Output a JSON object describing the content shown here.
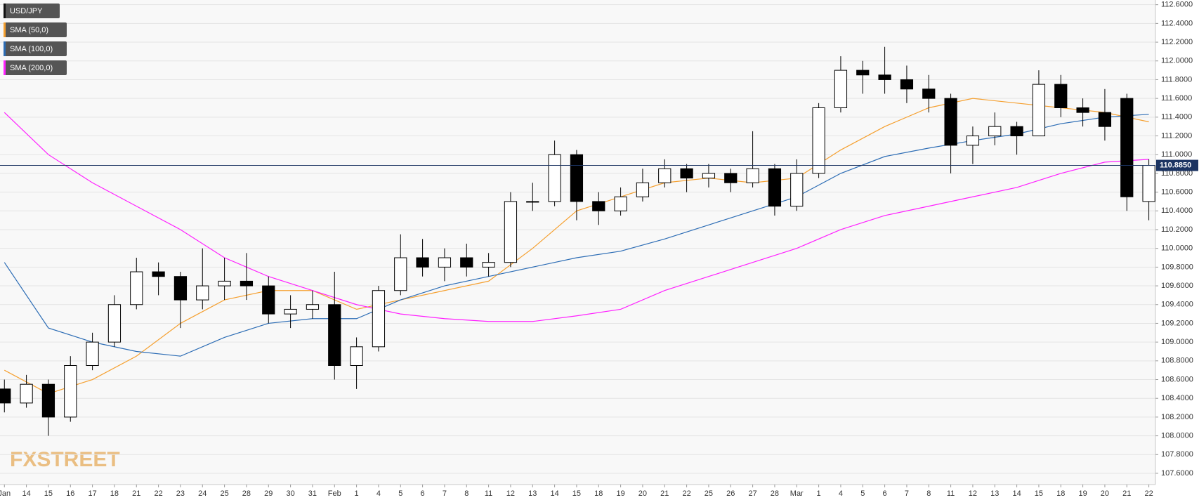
{
  "chart_data": {
    "type": "candlestick",
    "watermark": "FXSTREET",
    "xlim": [
      -0.2,
      52.3
    ],
    "ylim": [
      107.48,
      112.65
    ],
    "grid": true,
    "xticks": [
      {
        "value": 0,
        "label": "Jan"
      },
      {
        "value": 1,
        "label": "14"
      },
      {
        "value": 2,
        "label": "15"
      },
      {
        "value": 3,
        "label": "16"
      },
      {
        "value": 4,
        "label": "17"
      },
      {
        "value": 5,
        "label": "18"
      },
      {
        "value": 6,
        "label": "21"
      },
      {
        "value": 7,
        "label": "22"
      },
      {
        "value": 8,
        "label": "23"
      },
      {
        "value": 9,
        "label": "24"
      },
      {
        "value": 10,
        "label": "25"
      },
      {
        "value": 11,
        "label": "28"
      },
      {
        "value": 12,
        "label": "29"
      },
      {
        "value": 13,
        "label": "30"
      },
      {
        "value": 14,
        "label": "31"
      },
      {
        "value": 15,
        "label": "Feb"
      },
      {
        "value": 16,
        "label": "1"
      },
      {
        "value": 17,
        "label": "4"
      },
      {
        "value": 18,
        "label": "5"
      },
      {
        "value": 19,
        "label": "6"
      },
      {
        "value": 20,
        "label": "7"
      },
      {
        "value": 21,
        "label": "8"
      },
      {
        "value": 22,
        "label": "11"
      },
      {
        "value": 23,
        "label": "12"
      },
      {
        "value": 24,
        "label": "13"
      },
      {
        "value": 25,
        "label": "14"
      },
      {
        "value": 26,
        "label": "15"
      },
      {
        "value": 27,
        "label": "18"
      },
      {
        "value": 28,
        "label": "19"
      },
      {
        "value": 29,
        "label": "20"
      },
      {
        "value": 30,
        "label": "21"
      },
      {
        "value": 31,
        "label": "22"
      },
      {
        "value": 32,
        "label": "25"
      },
      {
        "value": 33,
        "label": "26"
      },
      {
        "value": 34,
        "label": "27"
      },
      {
        "value": 35,
        "label": "28"
      },
      {
        "value": 36,
        "label": "Mar"
      },
      {
        "value": 37,
        "label": "1"
      },
      {
        "value": 38,
        "label": "4"
      },
      {
        "value": 39,
        "label": "5"
      },
      {
        "value": 40,
        "label": "6"
      },
      {
        "value": 41,
        "label": "7"
      },
      {
        "value": 42,
        "label": "8"
      },
      {
        "value": 43,
        "label": "11"
      },
      {
        "value": 44,
        "label": "12"
      },
      {
        "value": 45,
        "label": "13"
      },
      {
        "value": 46,
        "label": "14"
      },
      {
        "value": 47,
        "label": "15"
      },
      {
        "value": 48,
        "label": "18"
      },
      {
        "value": 49,
        "label": "19"
      },
      {
        "value": 50,
        "label": "20"
      },
      {
        "value": 51,
        "label": "21"
      },
      {
        "value": 52,
        "label": "22"
      }
    ],
    "yticks": [
      {
        "value": 107.6,
        "label": "107.6000"
      },
      {
        "value": 107.8,
        "label": "107.8000"
      },
      {
        "value": 108.0,
        "label": "108.0000"
      },
      {
        "value": 108.2,
        "label": "108.2000"
      },
      {
        "value": 108.4,
        "label": "108.4000"
      },
      {
        "value": 108.6,
        "label": "108.6000"
      },
      {
        "value": 108.8,
        "label": "108.8000"
      },
      {
        "value": 109.0,
        "label": "109.0000"
      },
      {
        "value": 109.2,
        "label": "109.2000"
      },
      {
        "value": 109.4,
        "label": "109.4000"
      },
      {
        "value": 109.6,
        "label": "109.6000"
      },
      {
        "value": 109.8,
        "label": "109.8000"
      },
      {
        "value": 110.0,
        "label": "110.0000"
      },
      {
        "value": 110.2,
        "label": "110.2000"
      },
      {
        "value": 110.4,
        "label": "110.4000"
      },
      {
        "value": 110.6,
        "label": "110.6000"
      },
      {
        "value": 110.8,
        "label": "110.8000"
      },
      {
        "value": 111.0,
        "label": "111.0000"
      },
      {
        "value": 111.2,
        "label": "111.2000"
      },
      {
        "value": 111.4,
        "label": "111.4000"
      },
      {
        "value": 111.6,
        "label": "111.6000"
      },
      {
        "value": 111.8,
        "label": "111.8000"
      },
      {
        "value": 112.0,
        "label": "112.0000"
      },
      {
        "value": 112.2,
        "label": "112.2000"
      },
      {
        "value": 112.4,
        "label": "112.4000"
      },
      {
        "value": 112.6,
        "label": "112.6000"
      }
    ],
    "last_price": {
      "value": 110.885,
      "label": "110.8850",
      "color": "#1c3462"
    },
    "series": [
      {
        "name": "USD/JPY",
        "color": "#000000",
        "up_color": "#ffffff",
        "x": [
          0,
          1,
          2,
          3,
          4,
          5,
          6,
          7,
          8,
          9,
          10,
          11,
          12,
          13,
          14,
          15,
          16,
          17,
          18,
          19,
          20,
          21,
          22,
          23,
          24,
          25,
          26,
          27,
          28,
          29,
          30,
          31,
          32,
          33,
          34,
          35,
          36,
          37,
          38,
          39,
          40,
          41,
          42,
          43,
          44,
          45,
          46,
          47,
          48,
          49,
          50,
          51,
          52
        ],
        "open": [
          108.5,
          108.35,
          108.55,
          108.2,
          108.75,
          109.0,
          109.4,
          109.75,
          109.7,
          109.45,
          109.6,
          109.65,
          109.6,
          109.3,
          109.35,
          109.4,
          108.75,
          108.95,
          109.55,
          109.9,
          109.8,
          109.9,
          109.8,
          109.85,
          110.5,
          110.5,
          111.0,
          110.5,
          110.4,
          110.55,
          110.7,
          110.85,
          110.75,
          110.8,
          110.7,
          110.85,
          110.45,
          110.8,
          111.5,
          111.9,
          111.85,
          111.8,
          111.7,
          111.6,
          111.1,
          111.2,
          111.3,
          111.2,
          111.75,
          111.5,
          111.45,
          111.6,
          110.5
        ],
        "high": [
          108.6,
          108.65,
          108.6,
          108.85,
          109.1,
          109.5,
          109.9,
          109.85,
          109.75,
          110.0,
          109.9,
          109.95,
          109.7,
          109.5,
          109.55,
          109.75,
          109.05,
          109.6,
          110.15,
          110.1,
          110.0,
          110.05,
          109.95,
          110.6,
          110.7,
          111.15,
          111.05,
          110.6,
          110.65,
          110.85,
          110.95,
          110.9,
          110.9,
          110.85,
          111.25,
          110.9,
          110.95,
          111.55,
          112.05,
          112.0,
          112.15,
          111.95,
          111.85,
          111.65,
          111.3,
          111.45,
          111.35,
          111.9,
          111.85,
          111.6,
          111.7,
          111.65,
          110.95
        ],
        "low": [
          108.25,
          108.3,
          108.0,
          108.15,
          108.7,
          108.95,
          109.35,
          109.5,
          109.15,
          109.35,
          109.45,
          109.45,
          109.2,
          109.15,
          109.25,
          108.6,
          108.5,
          108.9,
          109.5,
          109.7,
          109.65,
          109.7,
          109.7,
          109.8,
          110.4,
          110.45,
          110.3,
          110.25,
          110.35,
          110.5,
          110.65,
          110.6,
          110.65,
          110.6,
          110.65,
          110.35,
          110.4,
          110.75,
          111.45,
          111.65,
          111.65,
          111.55,
          111.45,
          110.8,
          110.9,
          111.1,
          111.0,
          111.2,
          111.4,
          111.3,
          111.15,
          110.4,
          110.3
        ],
        "close": [
          108.35,
          108.55,
          108.2,
          108.75,
          109.0,
          109.4,
          109.75,
          109.7,
          109.45,
          109.6,
          109.65,
          109.6,
          109.3,
          109.35,
          109.4,
          108.75,
          108.95,
          109.55,
          109.9,
          109.8,
          109.9,
          109.8,
          109.85,
          110.5,
          110.5,
          111.0,
          110.5,
          110.4,
          110.55,
          110.7,
          110.85,
          110.75,
          110.8,
          110.7,
          110.85,
          110.45,
          110.8,
          111.5,
          111.9,
          111.85,
          111.8,
          111.7,
          111.6,
          111.1,
          111.2,
          111.3,
          111.2,
          111.75,
          111.5,
          111.45,
          111.3,
          110.55,
          110.885
        ]
      },
      {
        "name": "SMA (50,0)",
        "color": "#f5a030",
        "x": [
          0,
          2,
          4,
          6,
          8,
          10,
          12,
          14,
          16,
          18,
          20,
          22,
          24,
          26,
          28,
          30,
          32,
          34,
          36,
          38,
          40,
          42,
          44,
          46,
          48,
          50,
          52
        ],
        "values": [
          108.7,
          108.45,
          108.6,
          108.85,
          109.2,
          109.45,
          109.55,
          109.55,
          109.35,
          109.45,
          109.55,
          109.65,
          110.0,
          110.4,
          110.55,
          110.7,
          110.75,
          110.7,
          110.75,
          111.05,
          111.3,
          111.5,
          111.6,
          111.55,
          111.5,
          111.45,
          111.35
        ]
      },
      {
        "name": "SMA (100,0)",
        "color": "#2d6db5",
        "x": [
          0,
          2,
          4,
          6,
          8,
          10,
          12,
          14,
          16,
          18,
          20,
          22,
          24,
          26,
          28,
          30,
          32,
          34,
          36,
          38,
          40,
          42,
          44,
          46,
          48,
          50,
          52
        ],
        "values": [
          109.85,
          109.15,
          109.0,
          108.9,
          108.85,
          109.05,
          109.2,
          109.25,
          109.25,
          109.45,
          109.6,
          109.7,
          109.8,
          109.9,
          109.97,
          110.1,
          110.25,
          110.4,
          110.55,
          110.8,
          110.98,
          111.07,
          111.15,
          111.22,
          111.33,
          111.4,
          111.43
        ]
      },
      {
        "name": "SMA (200,0)",
        "color": "#ff20ff",
        "x": [
          0,
          2,
          4,
          6,
          8,
          10,
          12,
          14,
          16,
          18,
          20,
          22,
          24,
          26,
          28,
          30,
          32,
          34,
          36,
          38,
          40,
          42,
          44,
          46,
          48,
          50,
          52
        ],
        "values": [
          111.45,
          111.0,
          110.7,
          110.45,
          110.2,
          109.9,
          109.7,
          109.55,
          109.4,
          109.3,
          109.25,
          109.22,
          109.22,
          109.28,
          109.35,
          109.55,
          109.7,
          109.85,
          110.0,
          110.2,
          110.35,
          110.45,
          110.55,
          110.65,
          110.8,
          110.92,
          110.95
        ]
      }
    ]
  }
}
